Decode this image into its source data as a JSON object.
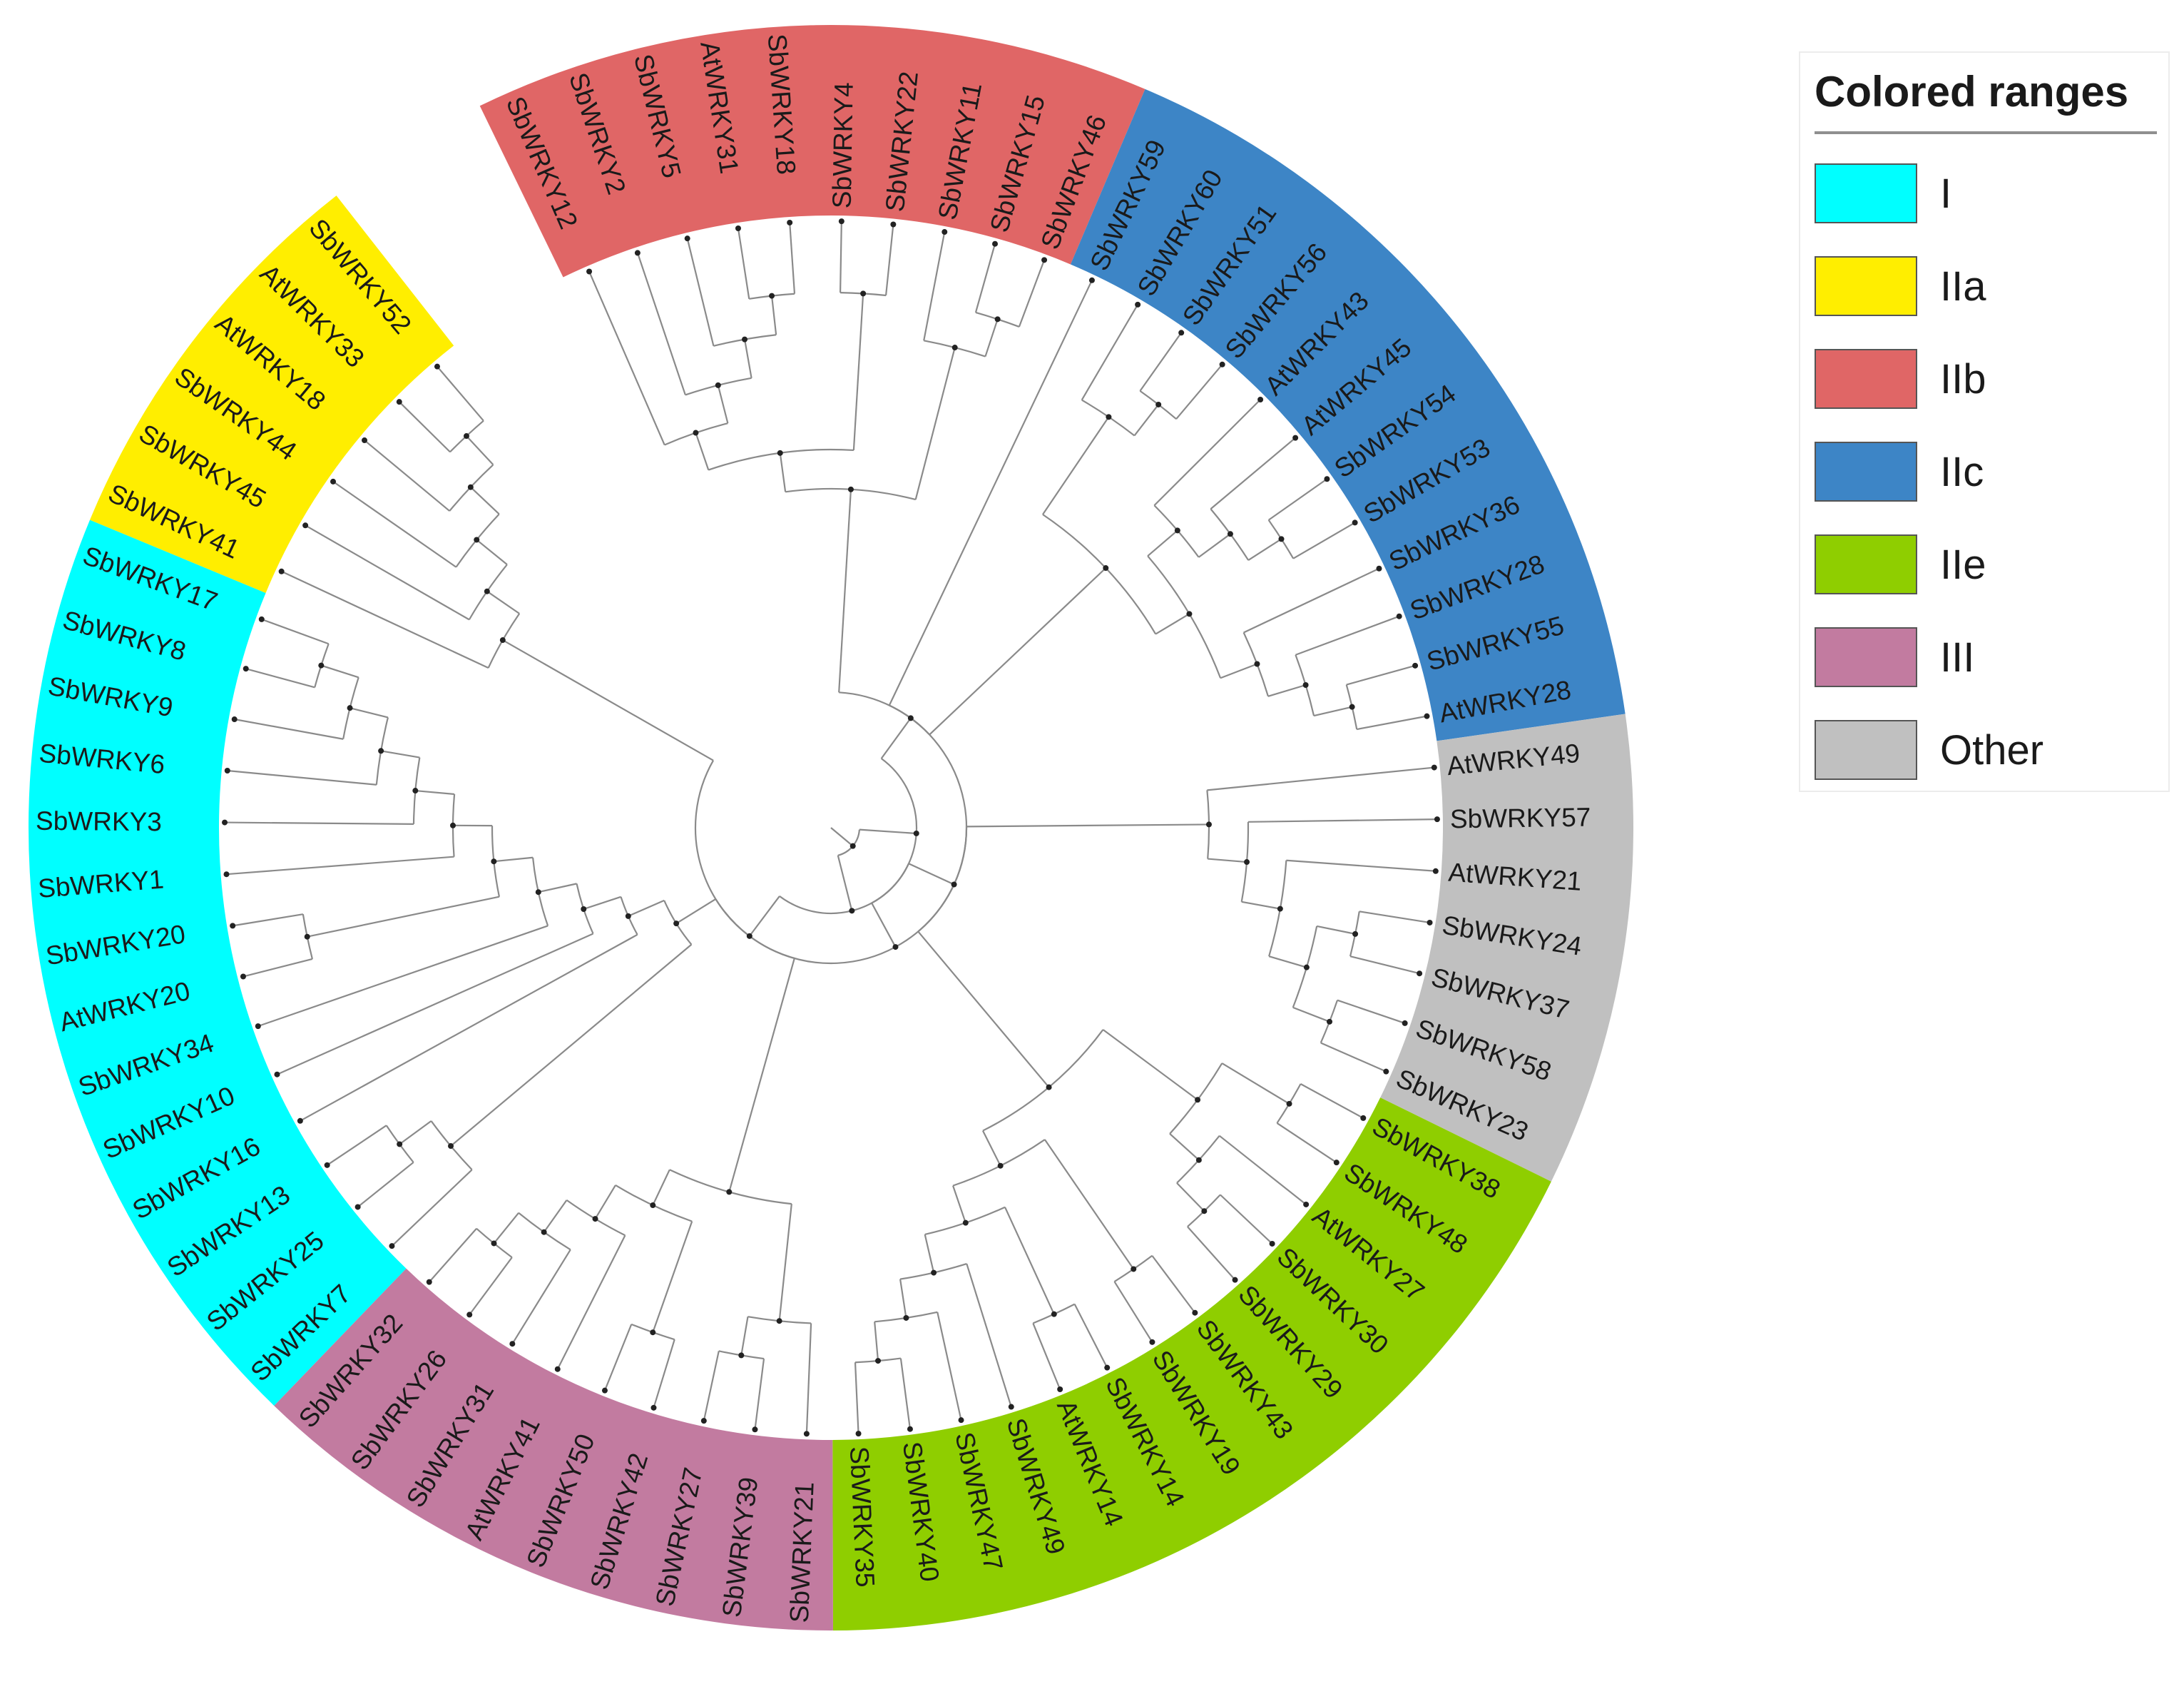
{
  "legend": {
    "title": "Colored ranges",
    "items": [
      {
        "label": "I",
        "color": "#00ffff"
      },
      {
        "label": "IIa",
        "color": "#ffee00"
      },
      {
        "label": "IIb",
        "color": "#e06666"
      },
      {
        "label": "IIc",
        "color": "#3d85c6"
      },
      {
        "label": "IIe",
        "color": "#8fce00"
      },
      {
        "label": "III",
        "color": "#c27ba0"
      },
      {
        "label": "Other",
        "color": "#c0c0c0"
      }
    ]
  },
  "tree": {
    "leaves": [
      {
        "label": "SbWRKY12",
        "group": "IIb"
      },
      {
        "label": "SbWRKY2",
        "group": "IIb"
      },
      {
        "label": "SbWRKY5",
        "group": "IIb"
      },
      {
        "label": "AtWRKY31",
        "group": "IIb"
      },
      {
        "label": "SbWRKY18",
        "group": "IIb"
      },
      {
        "label": "SbWRKY4",
        "group": "IIb"
      },
      {
        "label": "SbWRKY22",
        "group": "IIb"
      },
      {
        "label": "SbWRKY11",
        "group": "IIb"
      },
      {
        "label": "SbWRKY15",
        "group": "IIb"
      },
      {
        "label": "SbWRKY46",
        "group": "IIb"
      },
      {
        "label": "SbWRKY59",
        "group": "IIc"
      },
      {
        "label": "SbWRKY60",
        "group": "IIc"
      },
      {
        "label": "SbWRKY51",
        "group": "IIc"
      },
      {
        "label": "SbWRKY56",
        "group": "IIc"
      },
      {
        "label": "AtWRKY43",
        "group": "IIc"
      },
      {
        "label": "AtWRKY45",
        "group": "IIc"
      },
      {
        "label": "SbWRKY54",
        "group": "IIc"
      },
      {
        "label": "SbWRKY53",
        "group": "IIc"
      },
      {
        "label": "SbWRKY36",
        "group": "IIc"
      },
      {
        "label": "SbWRKY28",
        "group": "IIc"
      },
      {
        "label": "SbWRKY55",
        "group": "IIc"
      },
      {
        "label": "AtWRKY28",
        "group": "IIc"
      },
      {
        "label": "AtWRKY49",
        "group": "Other"
      },
      {
        "label": "SbWRKY57",
        "group": "Other"
      },
      {
        "label": "AtWRKY21",
        "group": "Other"
      },
      {
        "label": "SbWRKY24",
        "group": "Other"
      },
      {
        "label": "SbWRKY37",
        "group": "Other"
      },
      {
        "label": "SbWRKY58",
        "group": "Other"
      },
      {
        "label": "SbWRKY23",
        "group": "Other"
      },
      {
        "label": "SbWRKY38",
        "group": "IIe"
      },
      {
        "label": "SbWRKY48",
        "group": "IIe"
      },
      {
        "label": "AtWRKY27",
        "group": "IIe"
      },
      {
        "label": "SbWRKY30",
        "group": "IIe"
      },
      {
        "label": "SbWRKY29",
        "group": "IIe"
      },
      {
        "label": "SbWRKY43",
        "group": "IIe"
      },
      {
        "label": "SbWRKY19",
        "group": "IIe"
      },
      {
        "label": "SbWRKY14",
        "group": "IIe"
      },
      {
        "label": "AtWRKY14",
        "group": "IIe"
      },
      {
        "label": "SbWRKY49",
        "group": "IIe"
      },
      {
        "label": "SbWRKY47",
        "group": "IIe"
      },
      {
        "label": "SbWRKY40",
        "group": "IIe"
      },
      {
        "label": "SbWRKY35",
        "group": "IIe"
      },
      {
        "label": "SbWRKY21",
        "group": "III"
      },
      {
        "label": "SbWRKY39",
        "group": "III"
      },
      {
        "label": "SbWRKY27",
        "group": "III"
      },
      {
        "label": "SbWRKY42",
        "group": "III"
      },
      {
        "label": "SbWRKY50",
        "group": "III"
      },
      {
        "label": "AtWRKY41",
        "group": "III"
      },
      {
        "label": "SbWRKY31",
        "group": "III"
      },
      {
        "label": "SbWRKY26",
        "group": "III"
      },
      {
        "label": "SbWRKY32",
        "group": "III"
      },
      {
        "label": "SbWRKY7",
        "group": "I"
      },
      {
        "label": "SbWRKY25",
        "group": "I"
      },
      {
        "label": "SbWRKY13",
        "group": "I"
      },
      {
        "label": "SbWRKY16",
        "group": "I"
      },
      {
        "label": "SbWRKY10",
        "group": "I"
      },
      {
        "label": "SbWRKY34",
        "group": "I"
      },
      {
        "label": "AtWRKY20",
        "group": "I"
      },
      {
        "label": "SbWRKY20",
        "group": "I"
      },
      {
        "label": "SbWRKY1",
        "group": "I"
      },
      {
        "label": "SbWRKY3",
        "group": "I"
      },
      {
        "label": "SbWRKY6",
        "group": "I"
      },
      {
        "label": "SbWRKY9",
        "group": "I"
      },
      {
        "label": "SbWRKY8",
        "group": "I"
      },
      {
        "label": "SbWRKY17",
        "group": "I"
      },
      {
        "label": "SbWRKY41",
        "group": "IIa"
      },
      {
        "label": "SbWRKY45",
        "group": "IIa"
      },
      {
        "label": "SbWRKY44",
        "group": "IIa"
      },
      {
        "label": "AtWRKY18",
        "group": "IIa"
      },
      {
        "label": "AtWRKY33",
        "group": "IIa"
      },
      {
        "label": "SbWRKY52",
        "group": "IIa"
      }
    ]
  }
}
